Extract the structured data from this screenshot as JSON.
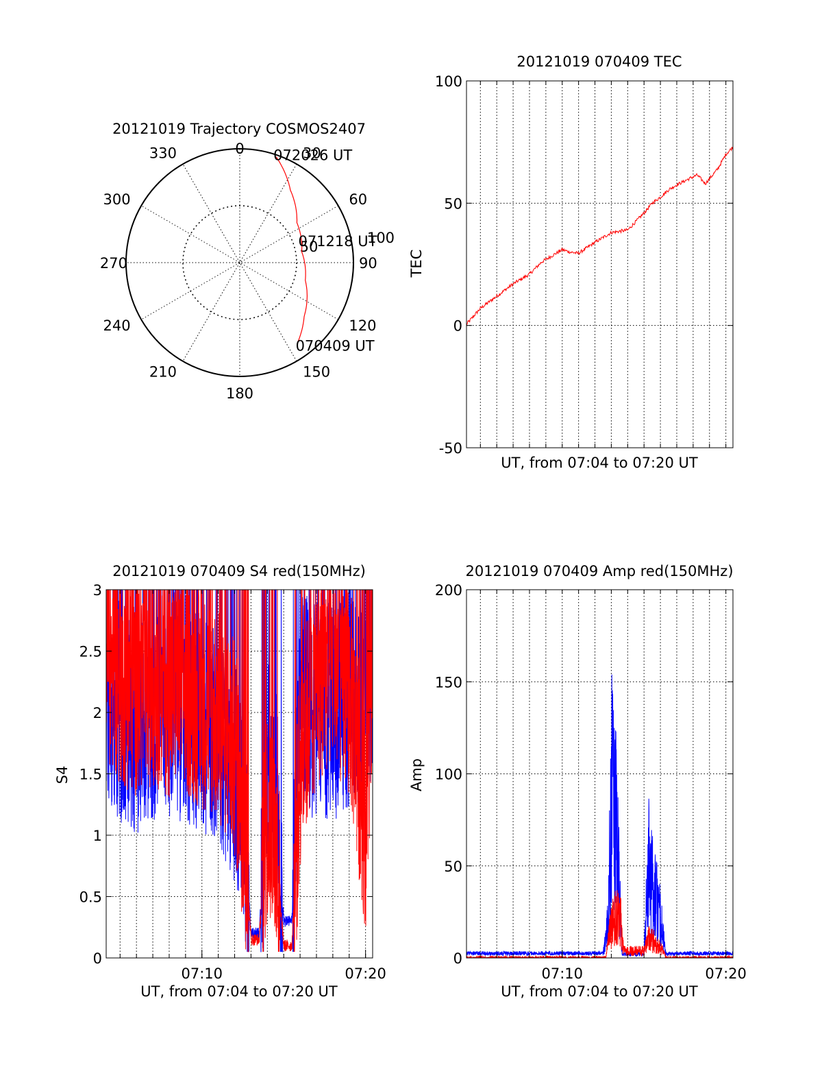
{
  "colors": {
    "red": "#ff0000",
    "blue": "#0000ff",
    "axis": "#000000",
    "grid": "#000000"
  },
  "chart_data": [
    {
      "id": "trajectory",
      "type": "polar",
      "title": "20121019 Trajectory COSMOS2407",
      "azimuth_labels": [
        "0",
        "30",
        "60",
        "90",
        "120",
        "150",
        "180",
        "210",
        "240",
        "270",
        "300",
        "330"
      ],
      "radial_labels": [
        "50",
        "100"
      ],
      "elevation_rings": [
        0,
        45
      ],
      "track": {
        "color": "red",
        "points": [
          {
            "az": 19,
            "el": 1.5
          },
          {
            "az": 35,
            "el": 20.1
          },
          {
            "az": 55,
            "el": 34.8
          },
          {
            "az": 80,
            "el": 40.2
          },
          {
            "az": 105,
            "el": 36.3
          },
          {
            "az": 130,
            "el": 23.5
          },
          {
            "az": 144,
            "el": 12
          }
        ],
        "time_labels": [
          {
            "text": "072026 UT",
            "at": "end"
          },
          {
            "text": "071218 UT",
            "at": "middle"
          },
          {
            "text": "070409 UT",
            "at": "start"
          }
        ]
      }
    },
    {
      "id": "tec",
      "type": "line",
      "title": "20121019 070409 TEC",
      "xlabel": "UT, from 07:04 to 07:20 UT",
      "ylabel": "TEC",
      "xlim": [
        "07:04:09",
        "07:20:26"
      ],
      "ylim": [
        -50,
        100
      ],
      "yticks": [
        "-50",
        "0",
        "50",
        "100"
      ],
      "xticks": [],
      "series": [
        {
          "color": "red",
          "x": [
            "07:04:09",
            "07:05:00",
            "07:06:00",
            "07:07:00",
            "07:08:00",
            "07:08:45",
            "07:09:30",
            "07:10:00",
            "07:10:30",
            "07:11:00",
            "07:12:00",
            "07:13:00",
            "07:14:00",
            "07:15:00",
            "07:15:30",
            "07:16:00",
            "07:16:30",
            "07:17:00",
            "07:17:45",
            "07:18:15",
            "07:18:45",
            "07:19:30",
            "07:20:00",
            "07:20:26"
          ],
          "y": [
            0.5,
            7,
            12,
            17,
            21,
            26,
            29,
            31,
            30,
            29.5,
            34,
            38,
            39,
            46,
            50,
            52.5,
            55.5,
            57.5,
            60,
            61.5,
            58,
            64,
            70,
            73
          ]
        }
      ]
    },
    {
      "id": "s4",
      "type": "line",
      "title": "20121019 070409 S4 red(150MHz)",
      "xlabel": "UT, from 07:04 to 07:20 UT",
      "ylabel": "S4",
      "xlim": [
        "07:04:09",
        "07:20:26"
      ],
      "ylim": [
        0,
        3
      ],
      "yticks": [
        "0",
        "0.5",
        "1",
        "1.5",
        "2",
        "2.5",
        "3"
      ],
      "xticks": [
        "07:10",
        "07:20"
      ],
      "series": [
        {
          "color": "blue",
          "x": [
            "07:04:09",
            "07:05:00",
            "07:06:00",
            "07:07:00",
            "07:08:00",
            "07:09:00",
            "07:10:00",
            "07:11:00",
            "07:12:00",
            "07:12:30",
            "07:13:00",
            "07:13:30",
            "07:14:00",
            "07:14:30",
            "07:15:00",
            "07:15:30",
            "07:16:00",
            "07:17:00",
            "07:18:00",
            "07:19:00",
            "07:20:00",
            "07:20:26"
          ],
          "y": [
            2.1,
            2.0,
            1.9,
            2.0,
            2.0,
            2.0,
            1.9,
            1.8,
            1.5,
            1.3,
            0.2,
            0.2,
            1.6,
            1.5,
            0.3,
            0.3,
            2.1,
            2.0,
            2.0,
            2.1,
            2.2,
            2.4
          ]
        },
        {
          "color": "red",
          "x": [
            "07:04:09",
            "07:05:00",
            "07:06:00",
            "07:07:00",
            "07:08:00",
            "07:09:00",
            "07:10:00",
            "07:11:00",
            "07:12:00",
            "07:12:30",
            "07:13:00",
            "07:13:30",
            "07:14:00",
            "07:14:30",
            "07:15:00",
            "07:15:30",
            "07:16:00",
            "07:17:00",
            "07:18:00",
            "07:19:00",
            "07:20:00",
            "07:20:26"
          ],
          "y": [
            2.5,
            2.3,
            2.2,
            2.3,
            2.2,
            2.2,
            2.1,
            2.0,
            1.7,
            1.2,
            0.15,
            0.15,
            1.2,
            0.9,
            0.1,
            0.1,
            1.6,
            2.3,
            2.4,
            2.2,
            1.1,
            2.3
          ]
        }
      ]
    },
    {
      "id": "amp",
      "type": "line",
      "title": "20121019 070409 Amp red(150MHz)",
      "xlabel": "UT, from 07:04 to 07:20 UT",
      "ylabel": "Amp",
      "xlim": [
        "07:04:09",
        "07:20:26"
      ],
      "ylim": [
        0,
        200
      ],
      "yticks": [
        "0",
        "50",
        "100",
        "150",
        "200"
      ],
      "xticks": [
        "07:10",
        "07:20"
      ],
      "series": [
        {
          "color": "blue",
          "x": [
            "07:04:09",
            "07:08:00",
            "07:12:30",
            "07:12:50",
            "07:13:00",
            "07:13:20",
            "07:13:40",
            "07:14:30",
            "07:15:00",
            "07:15:15",
            "07:15:35",
            "07:16:00",
            "07:16:20",
            "07:17:00",
            "07:20:26"
          ],
          "y": [
            2.5,
            2.5,
            2.5,
            30,
            130,
            90,
            2,
            2,
            2,
            70,
            50,
            30,
            2,
            2.5,
            2.5
          ]
        },
        {
          "color": "red",
          "x": [
            "07:04:09",
            "07:12:40",
            "07:12:55",
            "07:13:15",
            "07:13:35",
            "07:13:45",
            "07:14:30",
            "07:15:00",
            "07:15:20",
            "07:15:45",
            "07:16:10",
            "07:16:20",
            "07:20:26"
          ],
          "y": [
            0,
            0,
            20,
            30,
            25,
            5,
            5,
            5,
            15,
            10,
            5,
            0,
            0
          ]
        }
      ]
    }
  ]
}
